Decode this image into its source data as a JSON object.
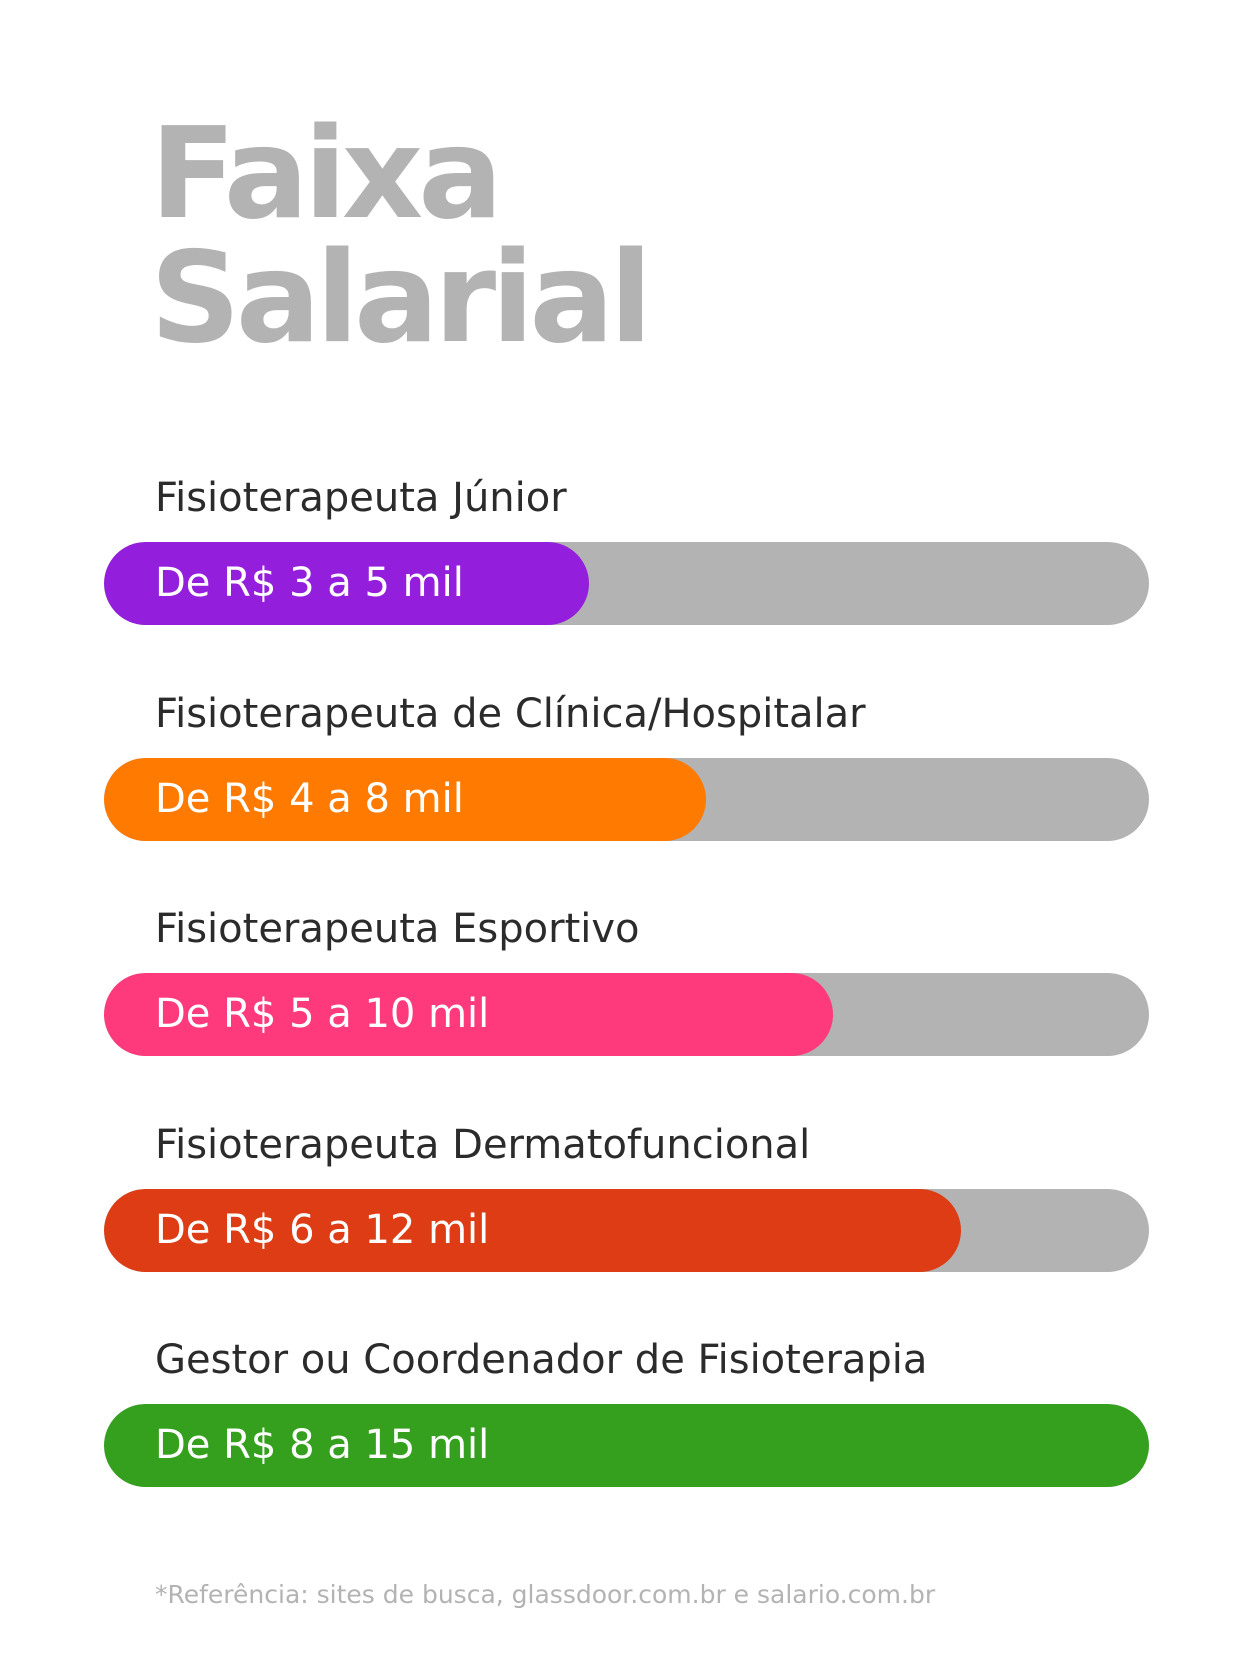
{
  "title": {
    "line1": "Faixa",
    "line2": "Salarial"
  },
  "items": [
    {
      "label": "Fisioterapeuta Júnior",
      "value": "De R$ 3 a 5 mil",
      "fill_percent": 46.4,
      "color": "#931fdd"
    },
    {
      "label": "Fisioterapeuta de Clínica/Hospitalar",
      "value": "De R$ 4 a 8 mil",
      "fill_percent": 57.6,
      "color": "#ff7a00"
    },
    {
      "label": "Fisioterapeuta Esportivo",
      "value": "De R$ 5 a 10 mil",
      "fill_percent": 69.8,
      "color": "#ff3a7c"
    },
    {
      "label": "Fisioterapeuta Dermatofuncional",
      "value": "De R$ 6 a 12 mil",
      "fill_percent": 82.0,
      "color": "#dd3c14"
    },
    {
      "label": "Gestor ou Coordenador de Fisioterapia",
      "value": "De R$ 8 a 15 mil",
      "fill_percent": 100,
      "color": "#34a01e"
    }
  ],
  "track_color": "#b3b3b3",
  "footer": "*Referência: sites de busca, glassdoor.com.br e salario.com.br"
}
